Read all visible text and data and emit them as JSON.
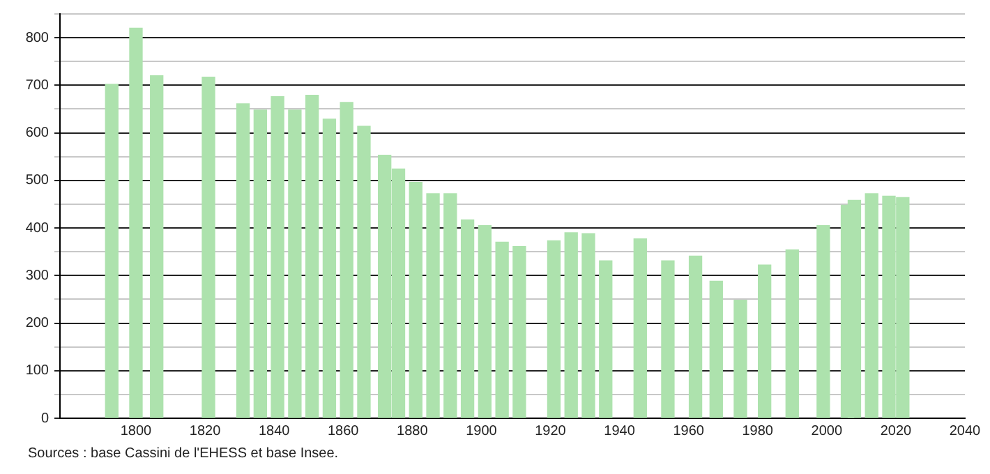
{
  "chart_data": {
    "type": "bar",
    "x": [
      1793,
      1800,
      1806,
      1821,
      1831,
      1836,
      1841,
      1846,
      1851,
      1856,
      1861,
      1866,
      1872,
      1876,
      1881,
      1886,
      1891,
      1896,
      1901,
      1906,
      1911,
      1921,
      1926,
      1931,
      1936,
      1946,
      1954,
      1962,
      1968,
      1975,
      1982,
      1990,
      1999,
      2006,
      2008,
      2013,
      2018,
      2022
    ],
    "series": [
      {
        "color": "#ade2ad",
        "values": [
          702,
          820,
          720,
          717,
          661,
          648,
          676,
          648,
          679,
          629,
          664,
          614,
          553,
          524,
          496,
          472,
          472,
          417,
          405,
          370,
          361,
          373,
          390,
          388,
          331,
          377,
          331,
          341,
          288,
          248,
          322,
          354,
          405,
          448,
          458,
          472,
          467,
          464
        ]
      }
    ],
    "xlim": [
      1778,
      2040
    ],
    "xticks": [
      1800,
      1820,
      1840,
      1860,
      1880,
      1900,
      1920,
      1940,
      1960,
      1980,
      2000,
      2020,
      2040
    ],
    "ylim": [
      0,
      850
    ],
    "yticks": [
      0,
      {
        "value": 50,
        "label": null
      },
      100,
      {
        "value": 150,
        "label": null
      },
      200,
      {
        "value": 250,
        "label": null
      },
      300,
      {
        "value": 350,
        "label": null
      },
      400,
      {
        "value": 450,
        "label": null
      },
      500,
      {
        "value": 550,
        "label": null
      },
      600,
      {
        "value": 650,
        "label": null
      },
      700,
      {
        "value": 750,
        "label": null
      },
      800,
      {
        "value": 850,
        "label": null
      }
    ],
    "grid": "y",
    "legend": false,
    "annotations": [
      "Sources : base Cassini de l'EHESS et base Insee."
    ]
  }
}
